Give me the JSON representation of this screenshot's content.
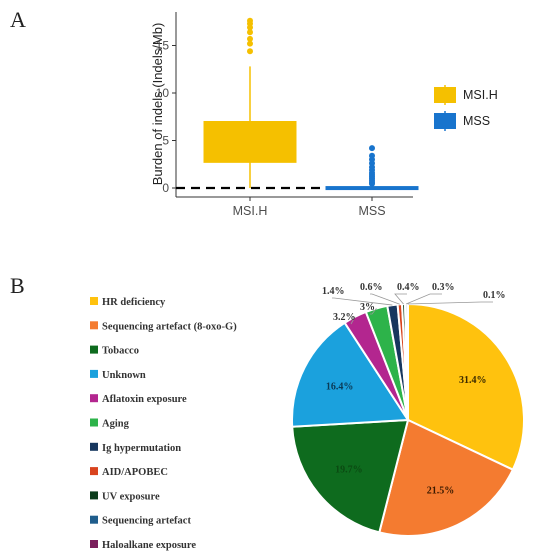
{
  "panel_a_label": "A",
  "panel_b_label": "B",
  "chart_data": [
    {
      "type": "box",
      "ylabel": "Burden of indels (Indels/Mb)",
      "xlabel": "",
      "ylim": [
        -1.5,
        18
      ],
      "yticks": [
        "0",
        "5",
        "10",
        "15"
      ],
      "reference_line": {
        "y": 0,
        "style": "dashed"
      },
      "categories": [
        "MSI.H",
        "MSS"
      ],
      "series": [
        {
          "name": "MSI.H",
          "color": "#F5C000",
          "q1": 2.7,
          "median": 3.7,
          "q3": 7.0,
          "whisker_low": 0.0,
          "whisker_high": 12.8,
          "outliers": [
            14.4,
            15.2,
            15.7,
            16.4,
            16.9,
            17.3,
            17.6
          ]
        },
        {
          "name": "MSS",
          "color": "#1874CD",
          "q1": 0.0,
          "median": 0.05,
          "q3": 0.15,
          "whisker_low": 0.0,
          "whisker_high": 0.3,
          "outliers": [
            0.45,
            0.6,
            0.8,
            1.0,
            1.2,
            1.4,
            1.6,
            1.9,
            2.2,
            2.6,
            3.0,
            3.4,
            4.2
          ]
        }
      ],
      "legend": {
        "position": "right",
        "entries": [
          "MSI.H",
          "MSS"
        ]
      },
      "grid": false
    },
    {
      "type": "pie",
      "legend": {
        "position": "left"
      },
      "slices": [
        {
          "label": "HR deficiency",
          "value": 31.4,
          "text": "31.4%",
          "color": "#FFC20E"
        },
        {
          "label": "Sequencing artefact (8-oxo-G)",
          "value": 21.5,
          "text": "21.5%",
          "color": "#F47B30"
        },
        {
          "label": "Tobacco",
          "value": 19.7,
          "text": "19.7%",
          "color": "#0E6B1E"
        },
        {
          "label": "Unknown",
          "value": 16.4,
          "text": "16.4%",
          "color": "#1BA1DD"
        },
        {
          "label": "Aflatoxin exposure",
          "value": 3.2,
          "text": "3.2%",
          "color": "#B3268F"
        },
        {
          "label": "Aging",
          "value": 3.0,
          "text": "3%",
          "color": "#2DB34A"
        },
        {
          "label": "Ig hypermutation",
          "value": 1.4,
          "text": "1.4%",
          "color": "#17375E"
        },
        {
          "label": "AID/APOBEC",
          "value": 0.6,
          "text": "0.6%",
          "color": "#D9431E"
        },
        {
          "label": "UV exposure",
          "value": 0.4,
          "text": "0.4%",
          "color": "#0B3D1B"
        },
        {
          "label": "Sequencing artefact",
          "value": 0.3,
          "text": "0.3%",
          "color": "#1F5D8C"
        },
        {
          "label": "Haloalkane exposure",
          "value": 0.1,
          "text": "0.1%",
          "color": "#7A1F5C"
        }
      ]
    }
  ]
}
